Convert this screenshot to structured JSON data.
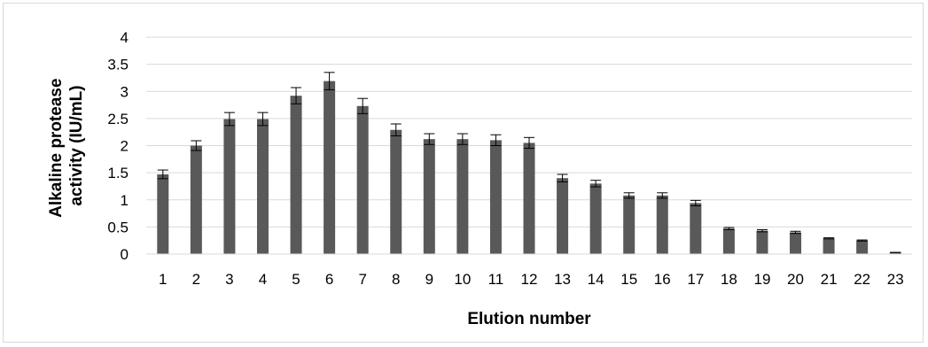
{
  "chart_data": {
    "type": "bar",
    "title": "",
    "xlabel": "Elution number",
    "ylabel_lines": [
      "Alkaline protease",
      "activity (IU/mL)"
    ],
    "ylim": [
      0,
      4
    ],
    "yticks": [
      "0",
      "0.5",
      "1",
      "1.5",
      "2",
      "2.5",
      "3",
      "3.5",
      "4"
    ],
    "grid": true,
    "bar_color": "#595959",
    "categories": [
      "1",
      "2",
      "3",
      "4",
      "5",
      "6",
      "7",
      "8",
      "9",
      "10",
      "11",
      "12",
      "13",
      "14",
      "15",
      "16",
      "17",
      "18",
      "19",
      "20",
      "21",
      "22",
      "23"
    ],
    "values": [
      1.47,
      2.0,
      2.49,
      2.49,
      2.92,
      3.19,
      2.73,
      2.29,
      2.12,
      2.12,
      2.1,
      2.05,
      1.4,
      1.3,
      1.08,
      1.08,
      0.94,
      0.47,
      0.43,
      0.4,
      0.29,
      0.25,
      0.03
    ],
    "errors": [
      0.08,
      0.09,
      0.12,
      0.12,
      0.15,
      0.16,
      0.14,
      0.11,
      0.1,
      0.1,
      0.1,
      0.1,
      0.07,
      0.06,
      0.05,
      0.05,
      0.05,
      0.02,
      0.02,
      0.02,
      0.01,
      0.01,
      0.0
    ]
  }
}
